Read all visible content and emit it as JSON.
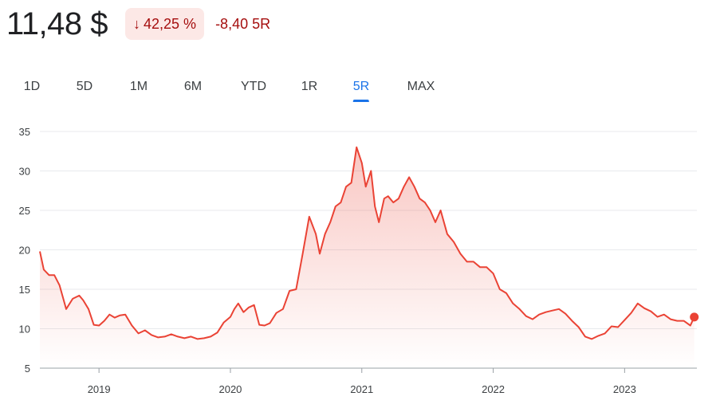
{
  "header": {
    "price": "11,48 $",
    "change_percent": "42,25 %",
    "change_value": "-8,40 5R"
  },
  "colors": {
    "accent": "#1a73e8",
    "negative": "#a50e0e",
    "line": "#ea4335",
    "badge_bg": "#fce8e6"
  },
  "tabs": [
    {
      "label": "1D",
      "active": false
    },
    {
      "label": "5D",
      "active": false
    },
    {
      "label": "1M",
      "active": false
    },
    {
      "label": "6M",
      "active": false
    },
    {
      "label": "YTD",
      "active": false
    },
    {
      "label": "1R",
      "active": false
    },
    {
      "label": "5R",
      "active": true
    },
    {
      "label": "MAX",
      "active": false
    }
  ],
  "chart_data": {
    "type": "area",
    "title": "",
    "xlabel": "",
    "ylabel": "",
    "xlim": [
      2018.55,
      2023.55
    ],
    "ylim": [
      5,
      35
    ],
    "y_ticks": [
      5,
      10,
      15,
      20,
      25,
      30,
      35
    ],
    "x_ticks": [
      {
        "label": "2019",
        "value": 2019.0
      },
      {
        "label": "2020",
        "value": 2020.0
      },
      {
        "label": "2021",
        "value": 2021.0
      },
      {
        "label": "2022",
        "value": 2022.0
      },
      {
        "label": "2023",
        "value": 2023.0
      }
    ],
    "grid": true,
    "series": [
      {
        "x": [
          2018.55,
          2018.58,
          2018.62,
          2018.66,
          2018.7,
          2018.75,
          2018.8,
          2018.85,
          2018.88,
          2018.92,
          2018.96,
          2019.0,
          2019.04,
          2019.08,
          2019.12,
          2019.16,
          2019.2,
          2019.25,
          2019.3,
          2019.35,
          2019.4,
          2019.45,
          2019.5,
          2019.55,
          2019.6,
          2019.65,
          2019.7,
          2019.75,
          2019.8,
          2019.85,
          2019.9,
          2019.95,
          2020.0,
          2020.03,
          2020.06,
          2020.1,
          2020.14,
          2020.18,
          2020.22,
          2020.26,
          2020.3,
          2020.35,
          2020.4,
          2020.45,
          2020.5,
          2020.55,
          2020.6,
          2020.65,
          2020.68,
          2020.72,
          2020.76,
          2020.8,
          2020.84,
          2020.88,
          2020.92,
          2020.96,
          2021.0,
          2021.03,
          2021.07,
          2021.1,
          2021.13,
          2021.17,
          2021.2,
          2021.24,
          2021.28,
          2021.32,
          2021.36,
          2021.4,
          2021.44,
          2021.48,
          2021.52,
          2021.56,
          2021.6,
          2021.65,
          2021.7,
          2021.75,
          2021.8,
          2021.85,
          2021.9,
          2021.95,
          2022.0,
          2022.05,
          2022.1,
          2022.15,
          2022.2,
          2022.25,
          2022.3,
          2022.35,
          2022.4,
          2022.45,
          2022.5,
          2022.55,
          2022.6,
          2022.65,
          2022.7,
          2022.75,
          2022.8,
          2022.85,
          2022.9,
          2022.95,
          2023.0,
          2023.05,
          2023.1,
          2023.15,
          2023.2,
          2023.25,
          2023.3,
          2023.35,
          2023.4,
          2023.45,
          2023.5,
          2023.53
        ],
        "values": [
          19.8,
          17.5,
          16.8,
          16.8,
          15.5,
          12.5,
          13.8,
          14.2,
          13.6,
          12.5,
          10.5,
          10.4,
          11.0,
          11.8,
          11.4,
          11.7,
          11.8,
          10.4,
          9.4,
          9.8,
          9.2,
          8.9,
          9.0,
          9.3,
          9.0,
          8.8,
          9.0,
          8.7,
          8.8,
          9.0,
          9.5,
          10.8,
          11.5,
          12.5,
          13.2,
          12.1,
          12.7,
          13.0,
          10.5,
          10.4,
          10.7,
          12.0,
          12.5,
          14.8,
          15.0,
          19.5,
          24.2,
          22.0,
          19.5,
          22.0,
          23.5,
          25.5,
          26.0,
          28.0,
          28.5,
          33.0,
          31.0,
          28.0,
          30.0,
          25.5,
          23.5,
          26.5,
          26.8,
          26.0,
          26.5,
          28.0,
          29.2,
          28.0,
          26.5,
          26.0,
          25.0,
          23.5,
          25.0,
          22.0,
          21.0,
          19.5,
          18.5,
          18.5,
          17.8,
          17.8,
          17.0,
          15.0,
          14.5,
          13.2,
          12.5,
          11.6,
          11.2,
          11.8,
          12.1,
          12.3,
          12.5,
          11.9,
          11.0,
          10.2,
          9.0,
          8.7,
          9.1,
          9.4,
          10.3,
          10.2,
          11.1,
          12.0,
          13.2,
          12.6,
          12.2,
          11.5,
          11.8,
          11.2,
          11.0,
          11.0,
          10.4,
          11.48
        ]
      }
    ]
  }
}
